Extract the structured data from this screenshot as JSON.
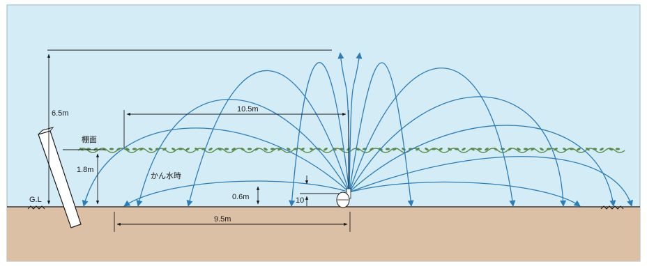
{
  "labels": {
    "height_total": "6.5m",
    "trellis_surface": "棚面",
    "trellis_height": "1.8m",
    "ground_line": "G.L",
    "span_upper": "10.5m",
    "irrigation_mode": "かん水時",
    "low_arc_height": "0.6m",
    "riser_height": "10",
    "span_lower": "9.5m"
  },
  "colors": {
    "sky": "#d4ecf6",
    "ground": "#dcc0a6",
    "spray": "#2a7db8",
    "vine": "#5a8a4a",
    "line": "#1a1a1a"
  },
  "icons": [
    "support-post-icon",
    "sprinkler-head-icon",
    "ground-hatch-icon"
  ]
}
